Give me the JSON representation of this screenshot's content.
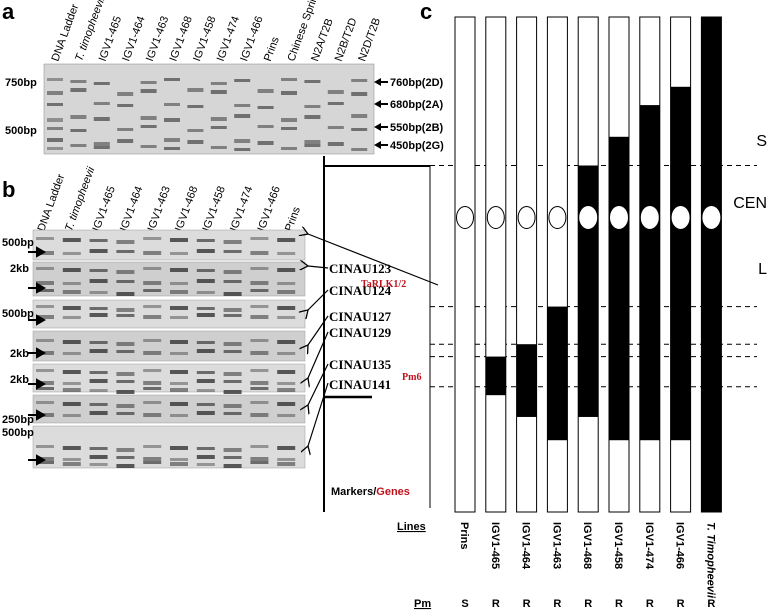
{
  "panels": {
    "a": "a",
    "b": "b",
    "c": "c"
  },
  "panel_a": {
    "lanes": [
      {
        "label": "DNA Ladder",
        "italic": false
      },
      {
        "label": "T. timopheevii",
        "italic": true
      },
      {
        "label": "IGV1-465",
        "italic": false
      },
      {
        "label": "IGV1-464",
        "italic": false
      },
      {
        "label": "IGV1-463",
        "italic": false
      },
      {
        "label": "IGV1-468",
        "italic": false
      },
      {
        "label": "IGV1-458",
        "italic": false
      },
      {
        "label": "IGV1-474",
        "italic": false
      },
      {
        "label": "IGV1-466",
        "italic": false
      },
      {
        "label": "Prins",
        "italic": false
      },
      {
        "label": "Chinese Spring",
        "italic": false
      },
      {
        "label": "N2A/T2B",
        "italic": false
      },
      {
        "label": "N2B/T2D",
        "italic": false
      },
      {
        "label": "N2D/T2B",
        "italic": false
      }
    ],
    "size_markers": [
      "750bp",
      "500bp"
    ],
    "band_labels": [
      "760bp(2D)",
      "680bp(2A)",
      "550bp(2B)",
      "450bp(2G)"
    ]
  },
  "panel_b": {
    "lanes": [
      {
        "label": "DNA Ladder",
        "italic": false
      },
      {
        "label": "T. timopheevii",
        "italic": true
      },
      {
        "label": "IGV1-465",
        "italic": false
      },
      {
        "label": "IGV1-464",
        "italic": false
      },
      {
        "label": "IGV1-463",
        "italic": false
      },
      {
        "label": "IGV1-468",
        "italic": false
      },
      {
        "label": "IGV1-458",
        "italic": false
      },
      {
        "label": "IGV1-474",
        "italic": false
      },
      {
        "label": "IGV1-466",
        "italic": false
      },
      {
        "label": "Prins",
        "italic": false
      }
    ],
    "size_markers": [
      "500bp",
      "2kb",
      "500bp",
      "2kb",
      "2kb",
      "250bp",
      "500bp"
    ],
    "markers": [
      "CINAU123",
      "CINAU124",
      "CINAU127",
      "CINAU129",
      "CINAU135",
      "CINAU141"
    ],
    "genes": [
      "TaRLK1/2",
      "Pm6"
    ],
    "legend_markers": "Markers/",
    "legend_genes": "Genes"
  },
  "panel_c": {
    "arm_labels": [
      "S",
      "CEN",
      "L"
    ],
    "lines_label": "Lines",
    "pm_label": "Pm",
    "chart_data": {
      "type": "diagram",
      "description_units": "fraction of chromosome length from top (0) to bottom (1)",
      "centromere_position": 0.405,
      "marker_boundaries": [
        0.3,
        0.585,
        0.661,
        0.686,
        0.747
      ],
      "lines": [
        {
          "name": "Prins",
          "italic": false,
          "pm": "S",
          "segments": []
        },
        {
          "name": "IGV1-465",
          "italic": false,
          "pm": "R",
          "segments": [
            [
              0.686,
              0.764
            ]
          ]
        },
        {
          "name": "IGV1-464",
          "italic": false,
          "pm": "R",
          "segments": [
            [
              0.661,
              0.808
            ]
          ]
        },
        {
          "name": "IGV1-463",
          "italic": false,
          "pm": "R",
          "segments": [
            [
              0.585,
              0.855
            ]
          ]
        },
        {
          "name": "IGV1-468",
          "italic": false,
          "pm": "R",
          "segments": [
            [
              0.3,
              0.808
            ]
          ]
        },
        {
          "name": "IGV1-458",
          "italic": false,
          "pm": "R",
          "segments": [
            [
              0.242,
              0.855
            ]
          ]
        },
        {
          "name": "IGV1-474",
          "italic": false,
          "pm": "R",
          "segments": [
            [
              0.178,
              0.855
            ]
          ]
        },
        {
          "name": "IGV1-466",
          "italic": false,
          "pm": "R",
          "segments": [
            [
              0.141,
              0.855
            ]
          ]
        },
        {
          "name": "T. Timopheevii",
          "italic": true,
          "pm": "R",
          "segments": [
            [
              0.0,
              1.0
            ]
          ]
        }
      ]
    }
  },
  "colors": {
    "gene": "#c0121c",
    "chromosome": "#000000",
    "gel_bg": "#d4d4d4"
  }
}
